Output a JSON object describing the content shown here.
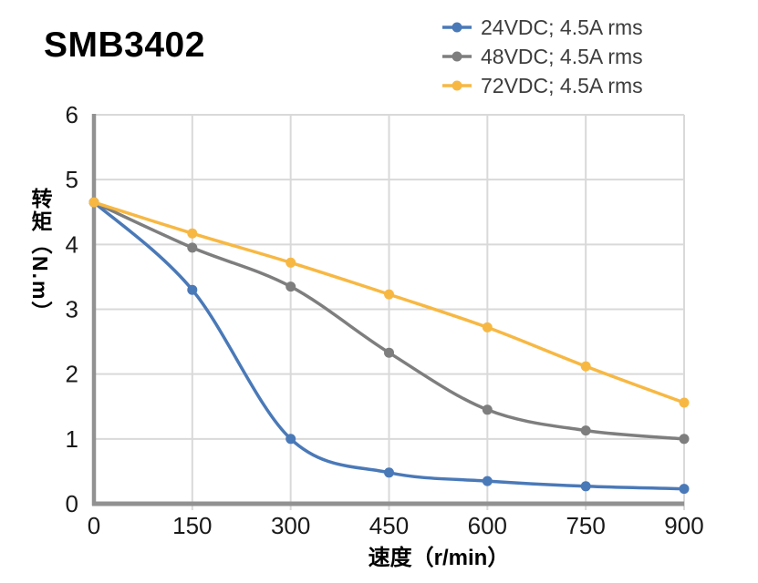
{
  "title": "SMB3402",
  "chart_data": {
    "type": "line",
    "x": [
      0,
      150,
      300,
      450,
      600,
      750,
      900
    ],
    "series": [
      {
        "name": "24VDC; 4.5A rms",
        "color": "#4A79B8",
        "values": [
          4.65,
          3.3,
          1.0,
          0.48,
          0.35,
          0.27,
          0.23
        ]
      },
      {
        "name": "48VDC; 4.5A rms",
        "color": "#7E7E7E",
        "values": [
          4.65,
          3.95,
          3.35,
          2.33,
          1.45,
          1.13,
          1.0
        ]
      },
      {
        "name": "72VDC; 4.5A rms",
        "color": "#F7B843",
        "values": [
          4.65,
          4.17,
          3.72,
          3.23,
          2.72,
          2.12,
          1.56
        ]
      }
    ],
    "xlabel": "速度（r/min）",
    "ylabel": "转矩（N.m）",
    "xlim": [
      0,
      900
    ],
    "ylim": [
      0,
      6
    ],
    "x_ticks": [
      0,
      150,
      300,
      450,
      600,
      750,
      900
    ],
    "y_ticks": [
      0,
      1,
      2,
      3,
      4,
      5,
      6
    ],
    "grid": true,
    "smooth": true,
    "markers": "circle",
    "legend_position": "top-right"
  },
  "colors": {
    "background": "#FFFFFF",
    "grid": "#D9D9D9",
    "axis": "#919191",
    "tick_label": "#1A1A1A",
    "legend_text": "#3D3D3D",
    "title": "#000000"
  }
}
